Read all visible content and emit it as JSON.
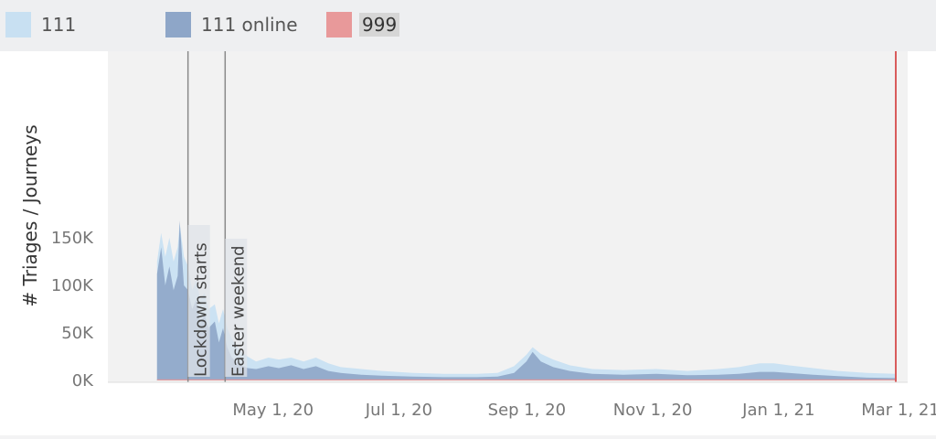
{
  "colors": {
    "series_111": "#c8e0f2",
    "series_111_online": "#8ea6c8",
    "series_999": "#e8999a",
    "plot_band": "#f2f2f2",
    "annotation_line": "#8a8a8a",
    "current_line": "#d95c5c"
  },
  "chart_data": {
    "type": "area",
    "title": "",
    "xlabel": "",
    "ylabel": "# Triages / Journeys",
    "ylim": [
      0,
      170000
    ],
    "xlim": [
      "2020-03-08",
      "2021-03-03"
    ],
    "grid": false,
    "legend_position": "top",
    "y_ticks": [
      {
        "value": 0,
        "label": "0K"
      },
      {
        "value": 50000,
        "label": "50K"
      },
      {
        "value": 100000,
        "label": "100K"
      },
      {
        "value": 150000,
        "label": "150K"
      }
    ],
    "x_ticks": [
      {
        "date": "2020-05-01",
        "label": "May 1, 20"
      },
      {
        "date": "2020-07-01",
        "label": "Jul 1, 20"
      },
      {
        "date": "2020-09-01",
        "label": "Sep 1, 20"
      },
      {
        "date": "2020-11-01",
        "label": "Nov 1, 20"
      },
      {
        "date": "2021-01-01",
        "label": "Jan 1, 21"
      },
      {
        "date": "2021-03-01",
        "label": "Mar 1, 21"
      }
    ],
    "annotations": [
      {
        "date": "2020-03-23",
        "label": "Lockdown starts"
      },
      {
        "date": "2020-04-10",
        "label": "Easter weekend"
      }
    ],
    "current_date": "2021-03-01",
    "series": [
      {
        "name": "111",
        "color_key": "series_111",
        "points": [
          [
            "2020-03-08",
            0
          ],
          [
            "2020-03-08",
            125000
          ],
          [
            "2020-03-10",
            155000
          ],
          [
            "2020-03-12",
            130000
          ],
          [
            "2020-03-14",
            150000
          ],
          [
            "2020-03-16",
            125000
          ],
          [
            "2020-03-18",
            140000
          ],
          [
            "2020-03-19",
            165000
          ],
          [
            "2020-03-21",
            130000
          ],
          [
            "2020-03-23",
            120000
          ],
          [
            "2020-03-25",
            95000
          ],
          [
            "2020-03-27",
            105000
          ],
          [
            "2020-03-29",
            85000
          ],
          [
            "2020-03-31",
            92000
          ],
          [
            "2020-04-02",
            75000
          ],
          [
            "2020-04-05",
            80000
          ],
          [
            "2020-04-07",
            60000
          ],
          [
            "2020-04-09",
            75000
          ],
          [
            "2020-04-11",
            55000
          ],
          [
            "2020-04-13",
            45000
          ],
          [
            "2020-04-15",
            38000
          ],
          [
            "2020-04-18",
            30000
          ],
          [
            "2020-04-21",
            25000
          ],
          [
            "2020-04-25",
            20000
          ],
          [
            "2020-05-01",
            24000
          ],
          [
            "2020-05-06",
            22000
          ],
          [
            "2020-05-12",
            24000
          ],
          [
            "2020-05-18",
            20000
          ],
          [
            "2020-05-24",
            24000
          ],
          [
            "2020-05-30",
            18000
          ],
          [
            "2020-06-05",
            14000
          ],
          [
            "2020-06-15",
            12000
          ],
          [
            "2020-06-25",
            10000
          ],
          [
            "2020-07-10",
            8000
          ],
          [
            "2020-07-25",
            7000
          ],
          [
            "2020-08-10",
            7000
          ],
          [
            "2020-08-20",
            8000
          ],
          [
            "2020-08-28",
            15000
          ],
          [
            "2020-09-03",
            27000
          ],
          [
            "2020-09-06",
            35000
          ],
          [
            "2020-09-10",
            28000
          ],
          [
            "2020-09-16",
            22000
          ],
          [
            "2020-09-24",
            16000
          ],
          [
            "2020-10-05",
            12000
          ],
          [
            "2020-10-20",
            11000
          ],
          [
            "2020-11-05",
            12000
          ],
          [
            "2020-11-20",
            10000
          ],
          [
            "2020-12-05",
            12000
          ],
          [
            "2020-12-15",
            14000
          ],
          [
            "2020-12-25",
            18000
          ],
          [
            "2021-01-01",
            18000
          ],
          [
            "2021-01-08",
            16000
          ],
          [
            "2021-01-20",
            13000
          ],
          [
            "2021-02-01",
            10000
          ],
          [
            "2021-02-15",
            8000
          ],
          [
            "2021-03-01",
            7000
          ],
          [
            "2021-03-01",
            0
          ]
        ]
      },
      {
        "name": "111 online",
        "color_key": "series_111_online",
        "points": [
          [
            "2020-03-08",
            0
          ],
          [
            "2020-03-08",
            112000
          ],
          [
            "2020-03-10",
            140000
          ],
          [
            "2020-03-12",
            100000
          ],
          [
            "2020-03-14",
            120000
          ],
          [
            "2020-03-16",
            95000
          ],
          [
            "2020-03-18",
            110000
          ],
          [
            "2020-03-19",
            168000
          ],
          [
            "2020-03-21",
            100000
          ],
          [
            "2020-03-23",
            95000
          ],
          [
            "2020-03-25",
            75000
          ],
          [
            "2020-03-27",
            85000
          ],
          [
            "2020-03-29",
            60000
          ],
          [
            "2020-03-31",
            70000
          ],
          [
            "2020-04-02",
            55000
          ],
          [
            "2020-04-05",
            62000
          ],
          [
            "2020-04-07",
            40000
          ],
          [
            "2020-04-09",
            55000
          ],
          [
            "2020-04-11",
            35000
          ],
          [
            "2020-04-13",
            25000
          ],
          [
            "2020-04-15",
            20000
          ],
          [
            "2020-04-18",
            16000
          ],
          [
            "2020-04-21",
            13000
          ],
          [
            "2020-04-25",
            12000
          ],
          [
            "2020-05-01",
            15000
          ],
          [
            "2020-05-06",
            13000
          ],
          [
            "2020-05-12",
            16000
          ],
          [
            "2020-05-18",
            12000
          ],
          [
            "2020-05-24",
            15000
          ],
          [
            "2020-05-30",
            10000
          ],
          [
            "2020-06-05",
            8000
          ],
          [
            "2020-06-15",
            6000
          ],
          [
            "2020-06-25",
            5000
          ],
          [
            "2020-07-10",
            4000
          ],
          [
            "2020-07-25",
            3500
          ],
          [
            "2020-08-10",
            3500
          ],
          [
            "2020-08-20",
            4000
          ],
          [
            "2020-08-28",
            8000
          ],
          [
            "2020-09-03",
            20000
          ],
          [
            "2020-09-06",
            30000
          ],
          [
            "2020-09-10",
            20000
          ],
          [
            "2020-09-16",
            14000
          ],
          [
            "2020-09-24",
            10000
          ],
          [
            "2020-10-05",
            7000
          ],
          [
            "2020-10-20",
            6000
          ],
          [
            "2020-11-05",
            7000
          ],
          [
            "2020-11-20",
            5500
          ],
          [
            "2020-12-05",
            6000
          ],
          [
            "2020-12-15",
            7000
          ],
          [
            "2020-12-25",
            9000
          ],
          [
            "2021-01-01",
            9000
          ],
          [
            "2021-01-08",
            8000
          ],
          [
            "2021-01-20",
            6000
          ],
          [
            "2021-02-01",
            4500
          ],
          [
            "2021-02-15",
            3000
          ],
          [
            "2021-03-01",
            2500
          ],
          [
            "2021-03-01",
            0
          ]
        ]
      },
      {
        "name": "999",
        "color_key": "series_999",
        "points": [
          [
            "2020-03-08",
            0
          ],
          [
            "2020-03-08",
            1200
          ],
          [
            "2021-03-01",
            1200
          ],
          [
            "2021-03-01",
            0
          ]
        ]
      }
    ]
  },
  "legend": [
    {
      "label": "111"
    },
    {
      "label": "111 online"
    },
    {
      "label": "999"
    }
  ]
}
